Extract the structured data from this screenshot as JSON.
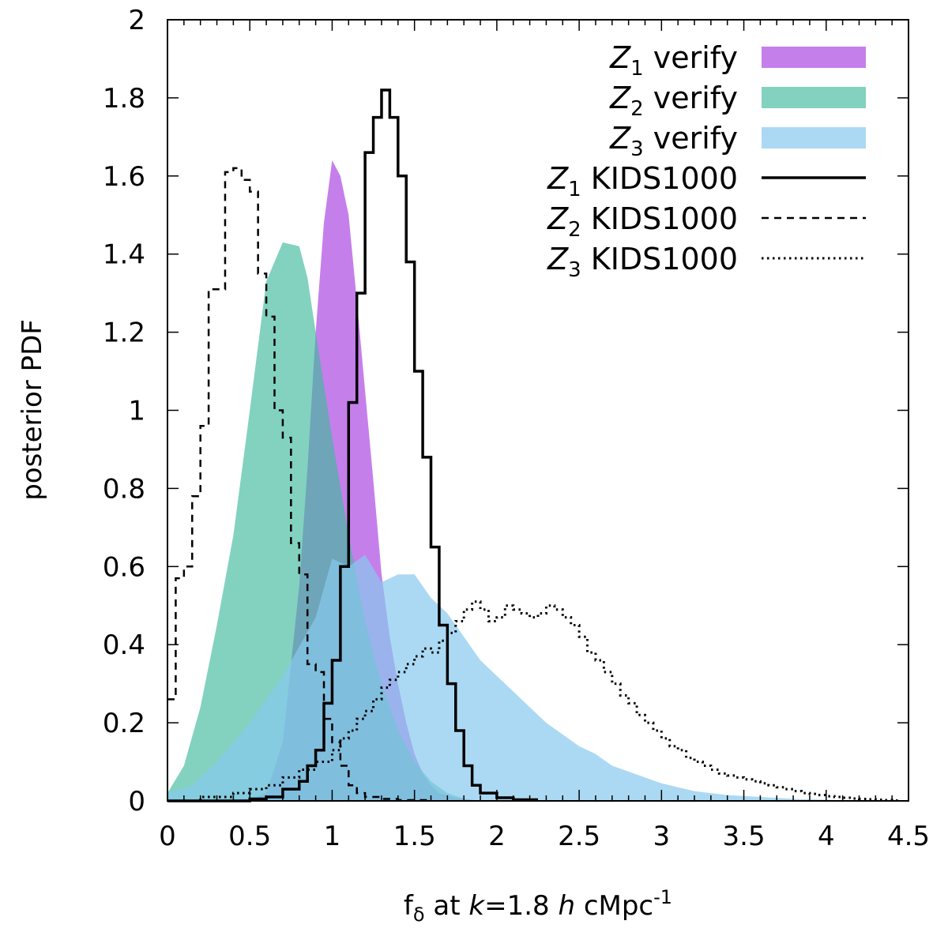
{
  "chart_data": {
    "type": "area",
    "xlabel": {
      "base": "f",
      "sub": "δ",
      "mid": " at ",
      "k": "k",
      "eq": "=1.8 ",
      "h": "h",
      "unit": " cMpc",
      "sup": "-1"
    },
    "ylabel": "posterior PDF",
    "xlim": [
      0,
      4.5
    ],
    "ylim": [
      0,
      2
    ],
    "x_ticks": [
      "0",
      "0.5",
      "1",
      "1.5",
      "2",
      "2.5",
      "3",
      "3.5",
      "4",
      "4.5"
    ],
    "y_ticks": [
      "0",
      "0.2",
      "0.4",
      "0.6",
      "0.8",
      "1",
      "1.2",
      "1.4",
      "1.6",
      "1.8",
      "2"
    ],
    "legend_position": "top-right",
    "series": [
      {
        "kind": "filled",
        "legend": {
          "sym": "Z",
          "sub": "1",
          "rest": " verify"
        },
        "color": "#b55be6",
        "opacity": 0.78,
        "points": [
          [
            0.2,
            0.0
          ],
          [
            0.5,
            0.005
          ],
          [
            0.6,
            0.02
          ],
          [
            0.7,
            0.15
          ],
          [
            0.8,
            0.55
          ],
          [
            0.85,
            0.85
          ],
          [
            0.9,
            1.2
          ],
          [
            0.95,
            1.48
          ],
          [
            1.0,
            1.64
          ],
          [
            1.05,
            1.6
          ],
          [
            1.1,
            1.5
          ],
          [
            1.15,
            1.28
          ],
          [
            1.2,
            1.05
          ],
          [
            1.25,
            0.82
          ],
          [
            1.3,
            0.58
          ],
          [
            1.35,
            0.42
          ],
          [
            1.4,
            0.3
          ],
          [
            1.45,
            0.2
          ],
          [
            1.5,
            0.12
          ],
          [
            1.55,
            0.07
          ],
          [
            1.6,
            0.04
          ],
          [
            1.65,
            0.02
          ],
          [
            1.75,
            0.007
          ],
          [
            1.9,
            0.0
          ]
        ]
      },
      {
        "kind": "filled",
        "legend": {
          "sym": "Z",
          "sub": "2",
          "rest": " verify"
        },
        "color": "#3fba9c",
        "opacity": 0.65,
        "points": [
          [
            0.0,
            0.02
          ],
          [
            0.1,
            0.09
          ],
          [
            0.2,
            0.24
          ],
          [
            0.3,
            0.45
          ],
          [
            0.4,
            0.68
          ],
          [
            0.5,
            1.0
          ],
          [
            0.6,
            1.33
          ],
          [
            0.7,
            1.43
          ],
          [
            0.8,
            1.42
          ],
          [
            0.85,
            1.34
          ],
          [
            0.9,
            1.2
          ],
          [
            1.0,
            0.93
          ],
          [
            1.1,
            0.68
          ],
          [
            1.2,
            0.46
          ],
          [
            1.3,
            0.3
          ],
          [
            1.4,
            0.18
          ],
          [
            1.5,
            0.1
          ],
          [
            1.6,
            0.05
          ],
          [
            1.7,
            0.02
          ],
          [
            1.8,
            0.006
          ],
          [
            1.9,
            0.0
          ]
        ]
      },
      {
        "kind": "filled",
        "legend": {
          "sym": "Z",
          "sub": "3",
          "rest": " verify"
        },
        "color": "#87c9ee",
        "opacity": 0.7,
        "points": [
          [
            0.0,
            0.02
          ],
          [
            0.15,
            0.04
          ],
          [
            0.3,
            0.1
          ],
          [
            0.5,
            0.2
          ],
          [
            0.7,
            0.32
          ],
          [
            0.9,
            0.47
          ],
          [
            1.0,
            0.62
          ],
          [
            1.1,
            0.6
          ],
          [
            1.2,
            0.63
          ],
          [
            1.3,
            0.56
          ],
          [
            1.4,
            0.58
          ],
          [
            1.5,
            0.58
          ],
          [
            1.6,
            0.52
          ],
          [
            1.7,
            0.48
          ],
          [
            1.8,
            0.42
          ],
          [
            1.9,
            0.36
          ],
          [
            2.0,
            0.32
          ],
          [
            2.1,
            0.28
          ],
          [
            2.2,
            0.24
          ],
          [
            2.3,
            0.2
          ],
          [
            2.4,
            0.17
          ],
          [
            2.5,
            0.14
          ],
          [
            2.6,
            0.12
          ],
          [
            2.7,
            0.09
          ],
          [
            2.8,
            0.075
          ],
          [
            2.9,
            0.06
          ],
          [
            3.0,
            0.045
          ],
          [
            3.1,
            0.035
          ],
          [
            3.2,
            0.025
          ],
          [
            3.4,
            0.015
          ],
          [
            3.6,
            0.01
          ],
          [
            3.8,
            0.005
          ],
          [
            4.1,
            0.002
          ],
          [
            4.3,
            0.0
          ]
        ]
      },
      {
        "kind": "step",
        "legend": {
          "sym": "Z",
          "sub": "1",
          "rest": " KIDS1000"
        },
        "dash": "",
        "line_width": 3.5,
        "edges": [
          0,
          0.5,
          0.6,
          0.7,
          0.8,
          0.85,
          0.9,
          0.95,
          1.0,
          1.05,
          1.1,
          1.15,
          1.2,
          1.25,
          1.3,
          1.35,
          1.4,
          1.45,
          1.5,
          1.55,
          1.6,
          1.65,
          1.7,
          1.75,
          1.8,
          1.85,
          1.9,
          2.0,
          2.1,
          2.25
        ],
        "values": [
          0.0,
          0.005,
          0.01,
          0.03,
          0.05,
          0.09,
          0.13,
          0.25,
          0.36,
          0.6,
          1.02,
          1.3,
          1.66,
          1.75,
          1.82,
          1.75,
          1.6,
          1.38,
          1.1,
          0.88,
          0.65,
          0.45,
          0.3,
          0.18,
          0.09,
          0.04,
          0.02,
          0.008,
          0.003
        ]
      },
      {
        "kind": "step",
        "legend": {
          "sym": "Z",
          "sub": "2",
          "rest": " KIDS1000"
        },
        "dash": "9,7",
        "line_width": 2.5,
        "edges": [
          0,
          0.05,
          0.1,
          0.15,
          0.2,
          0.25,
          0.3,
          0.35,
          0.4,
          0.45,
          0.5,
          0.55,
          0.6,
          0.65,
          0.7,
          0.75,
          0.8,
          0.85,
          0.9,
          0.95,
          1.0,
          1.05,
          1.1,
          1.15,
          1.2,
          1.3,
          1.4,
          1.6
        ],
        "values": [
          0.26,
          0.57,
          0.6,
          0.78,
          0.96,
          1.31,
          1.31,
          1.61,
          1.62,
          1.59,
          1.56,
          1.35,
          1.24,
          1.0,
          0.93,
          0.66,
          0.58,
          0.35,
          0.33,
          0.21,
          0.15,
          0.09,
          0.04,
          0.02,
          0.01,
          0.005,
          0.002
        ]
      },
      {
        "kind": "step",
        "legend": {
          "sym": "Z",
          "sub": "3",
          "rest": " KIDS1000"
        },
        "dash": "2.5,4.5",
        "line_width": 3,
        "edges": [
          0,
          0.2,
          0.4,
          0.5,
          0.6,
          0.7,
          0.8,
          0.9,
          1.0,
          1.05,
          1.1,
          1.15,
          1.2,
          1.25,
          1.3,
          1.35,
          1.4,
          1.45,
          1.5,
          1.55,
          1.6,
          1.65,
          1.7,
          1.75,
          1.8,
          1.85,
          1.9,
          1.95,
          2.0,
          2.05,
          2.1,
          2.15,
          2.2,
          2.25,
          2.3,
          2.35,
          2.4,
          2.45,
          2.5,
          2.55,
          2.6,
          2.65,
          2.7,
          2.75,
          2.8,
          2.85,
          2.9,
          2.95,
          3.0,
          3.05,
          3.1,
          3.15,
          3.2,
          3.25,
          3.3,
          3.35,
          3.4,
          3.45,
          3.5,
          3.55,
          3.6,
          3.65,
          3.7,
          3.75,
          3.8,
          3.85,
          3.9,
          3.95,
          4.0,
          4.05,
          4.1,
          4.15,
          4.2,
          4.25,
          4.3,
          4.35,
          4.4,
          4.45
        ],
        "values": [
          0.0,
          0.01,
          0.02,
          0.03,
          0.04,
          0.06,
          0.08,
          0.1,
          0.13,
          0.16,
          0.18,
          0.21,
          0.23,
          0.26,
          0.29,
          0.31,
          0.33,
          0.35,
          0.37,
          0.39,
          0.38,
          0.41,
          0.43,
          0.46,
          0.49,
          0.51,
          0.49,
          0.46,
          0.47,
          0.5,
          0.49,
          0.48,
          0.47,
          0.48,
          0.5,
          0.49,
          0.47,
          0.45,
          0.42,
          0.38,
          0.36,
          0.33,
          0.3,
          0.27,
          0.25,
          0.22,
          0.2,
          0.18,
          0.16,
          0.14,
          0.13,
          0.11,
          0.1,
          0.09,
          0.08,
          0.07,
          0.065,
          0.06,
          0.055,
          0.05,
          0.045,
          0.04,
          0.035,
          0.03,
          0.025,
          0.02,
          0.018,
          0.015,
          0.012,
          0.01,
          0.008,
          0.006,
          0.005,
          0.004,
          0.003,
          0.002,
          0.001
        ]
      }
    ]
  }
}
